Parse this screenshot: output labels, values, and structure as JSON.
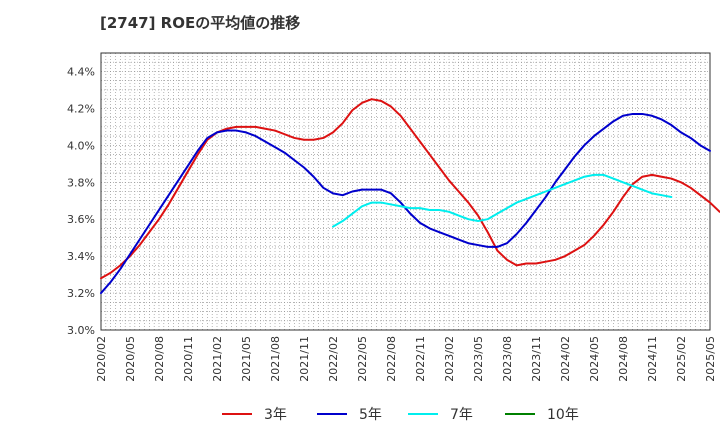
{
  "chart_data": {
    "type": "line",
    "title": "[2747]  ROEの平均値の推移",
    "xlabel": "",
    "ylabel": "",
    "ylim": [
      3.0,
      4.5
    ],
    "yticks": [
      3.0,
      3.2,
      3.4,
      3.6,
      3.8,
      4.0,
      4.2,
      4.4
    ],
    "ytick_labels": [
      "3.0%",
      "3.2%",
      "3.4%",
      "3.6%",
      "3.8%",
      "4.0%",
      "4.2%",
      "4.4%"
    ],
    "xtick_labels": [
      "2020/02",
      "2020/05",
      "2020/08",
      "2020/11",
      "2021/02",
      "2021/05",
      "2021/08",
      "2021/11",
      "2022/02",
      "2022/05",
      "2022/08",
      "2022/11",
      "2023/02",
      "2023/05",
      "2023/08",
      "2023/11",
      "2024/02",
      "2024/05",
      "2024/08",
      "2024/11",
      "2025/02",
      "2025/05"
    ],
    "grid": true,
    "legend_position": "bottom",
    "series": [
      {
        "name": "3年",
        "color": "#dd1111",
        "start_index": 0,
        "values": [
          3.28,
          3.31,
          3.35,
          3.4,
          3.46,
          3.53,
          3.6,
          3.68,
          3.77,
          3.86,
          3.95,
          4.03,
          4.07,
          4.09,
          4.1,
          4.1,
          4.1,
          4.09,
          4.08,
          4.06,
          4.04,
          4.03,
          4.03,
          4.04,
          4.07,
          4.12,
          4.19,
          4.23,
          4.25,
          4.24,
          4.21,
          4.16,
          4.09,
          4.02,
          3.95,
          3.88,
          3.81,
          3.75,
          3.69,
          3.62,
          3.53,
          3.43,
          3.38,
          3.35,
          3.36,
          3.36,
          3.37,
          3.38,
          3.4,
          3.43,
          3.46,
          3.51,
          3.57,
          3.64,
          3.72,
          3.79,
          3.83,
          3.84,
          3.83,
          3.82,
          3.8,
          3.77,
          3.73,
          3.69,
          3.64
        ]
      },
      {
        "name": "5年",
        "color": "#0000cc",
        "start_index": 0,
        "values": [
          3.2,
          3.26,
          3.33,
          3.41,
          3.49,
          3.57,
          3.65,
          3.73,
          3.81,
          3.89,
          3.97,
          4.04,
          4.07,
          4.08,
          4.08,
          4.07,
          4.05,
          4.02,
          3.99,
          3.96,
          3.92,
          3.88,
          3.83,
          3.77,
          3.74,
          3.73,
          3.75,
          3.76,
          3.76,
          3.76,
          3.74,
          3.69,
          3.63,
          3.58,
          3.55,
          3.53,
          3.51,
          3.49,
          3.47,
          3.46,
          3.45,
          3.45,
          3.47,
          3.52,
          3.58,
          3.65,
          3.72,
          3.8,
          3.87,
          3.94,
          4.0,
          4.05,
          4.09,
          4.13,
          4.16,
          4.17,
          4.17,
          4.16,
          4.14,
          4.11,
          4.07,
          4.04,
          4.0,
          3.97
        ]
      },
      {
        "name": "7年",
        "color": "#00eeee",
        "start_index": 24,
        "values": [
          3.56,
          3.59,
          3.63,
          3.67,
          3.69,
          3.69,
          3.68,
          3.67,
          3.66,
          3.66,
          3.65,
          3.65,
          3.64,
          3.62,
          3.6,
          3.59,
          3.6,
          3.63,
          3.66,
          3.69,
          3.71,
          3.73,
          3.75,
          3.77,
          3.79,
          3.81,
          3.83,
          3.84,
          3.84,
          3.82,
          3.8,
          3.78,
          3.76,
          3.74,
          3.73,
          3.72
        ]
      },
      {
        "name": "10年",
        "color": "#008000",
        "start_index": 0,
        "values": []
      }
    ]
  }
}
